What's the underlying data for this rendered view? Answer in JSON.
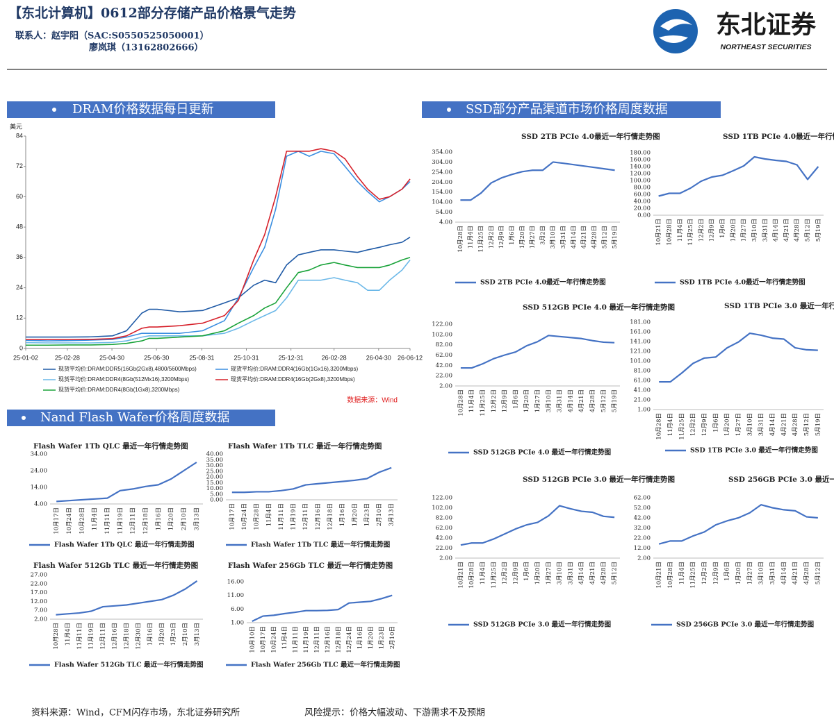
{
  "header": {
    "title": "【东北计算机】0612部分存储产品价格景气走势",
    "contacts": [
      "联系人：赵宇阳（SAC:S0550525050001）",
      "廖岚琪（13162802666）"
    ],
    "logo": {
      "name": "东北证券",
      "english": "NORTHEAST SECURITIES"
    }
  },
  "sections": {
    "dram": "DRAM价格数据每日更新",
    "nand": "Nand Flash Wafer价格周度数据",
    "ssd": "SSD部分产品渠道市场价格周度数据"
  },
  "chart_data": [
    {
      "type": "line",
      "y_label": "美元",
      "source": "数据来源：Wind",
      "legend": "bottom",
      "grid": false,
      "x": [
        "25-01-02",
        "25-02-01",
        "25-03-01",
        "25-04-01",
        "25-05-01",
        "25-05-20",
        "25-06-10",
        "25-06-20",
        "25-07-01",
        "25-08-01",
        "25-09-01",
        "25-10-01",
        "25-10-20",
        "25-11-10",
        "25-11-25",
        "25-12-10",
        "25-12-25",
        "26-01-10",
        "26-01-25",
        "26-02-10",
        "26-02-28",
        "26-03-15",
        "26-04-01",
        "26-04-15",
        "26-05-01",
        "26-05-15",
        "26-06-01",
        "26-06-12"
      ],
      "xlim": [
        "25-01-02",
        "26-06-12"
      ],
      "xticks": [
        "25-01-02",
        "25-02-28",
        "25-04-30",
        "25-06-30",
        "25-08-31",
        "25-10-31",
        "25-12-31",
        "26-02-28",
        "26-04-30",
        "26-06-12"
      ],
      "ylim": [
        0,
        84
      ],
      "yticks": [
        0,
        12,
        24,
        36,
        48,
        60,
        72,
        84
      ],
      "series": [
        {
          "name": "现货平均价:DRAM:DDR5(16Gb(2Gx8),4800/5600Mbps)",
          "color": "#1f5aa6",
          "values": [
            4.5,
            4.5,
            4.5,
            4.6,
            5,
            7,
            14,
            15.5,
            15.5,
            14.5,
            15,
            18,
            20,
            25,
            27,
            26,
            33,
            37,
            38,
            39,
            39,
            38.5,
            38,
            39,
            40,
            41,
            42,
            44
          ]
        },
        {
          "name": "现货平均价:DRAM:DDR4(16Gb(1Gx16),3200Mbps)",
          "color": "#3a8ee0",
          "values": [
            3.2,
            3,
            3.1,
            3.3,
            3.6,
            4.5,
            6,
            6,
            6,
            6,
            7,
            11,
            20,
            32,
            40,
            55,
            76,
            78,
            76,
            78,
            77,
            72,
            66,
            62,
            58,
            60,
            63,
            66
          ]
        },
        {
          "name": "现货平均价:DRAM:DDR4(8Gb(512Mx16),3200Mbps)",
          "color": "#6bb8e8",
          "values": [
            2.3,
            2.2,
            2.2,
            2.2,
            2.4,
            3,
            4.5,
            5,
            5,
            5,
            5,
            6,
            8,
            11,
            13,
            15,
            20,
            27,
            27,
            27,
            28,
            27,
            26,
            23,
            23,
            27,
            31,
            35
          ]
        },
        {
          "name": "现货平均价:DRAM:DDR4(16Gb(2Gx8),3200Mbps)",
          "color": "#d6202a",
          "values": [
            3.5,
            3.5,
            3.5,
            3.6,
            3.9,
            5,
            8,
            8.5,
            8.5,
            9,
            10,
            13,
            19,
            35,
            45,
            60,
            78,
            78,
            78,
            79,
            78,
            75,
            68,
            63,
            59,
            60,
            63,
            67
          ]
        },
        {
          "name": "现货平均价:DRAM:DDR4(8Gb(1Gx8),3200Mbps)",
          "color": "#1aa33a",
          "values": [
            1.3,
            1.3,
            1.4,
            1.4,
            1.6,
            2,
            3,
            4,
            4,
            4.5,
            5,
            7,
            10,
            13,
            16,
            18,
            24,
            30,
            31,
            33,
            34,
            33,
            32,
            32,
            32,
            33,
            35,
            36
          ]
        }
      ]
    },
    {
      "type": "line",
      "title": "Flash Wafer 1Tb QLC 最近一年行情走势图",
      "categories": [
        "10月17日",
        "10月24日",
        "10月28日",
        "11月4日",
        "11月11日",
        "11月19日",
        "12月11日",
        "12月18日",
        "1月16日",
        "1月20日",
        "2月10日",
        "3月13日"
      ],
      "ylim": [
        4,
        34
      ],
      "yticks": [
        {
          "value": 4,
          "label": "4.00"
        },
        {
          "value": 14,
          "label": "14.00"
        },
        {
          "value": 24,
          "label": "24.00"
        },
        {
          "value": 34,
          "label": "34.00"
        }
      ],
      "series": [
        {
          "name": "Flash Wafer 1Tb QLC 最近一年行情走势图",
          "color": "#4472c4",
          "values": [
            5.5,
            6,
            6.5,
            7,
            7.5,
            12,
            13,
            14.5,
            15.5,
            19,
            24,
            29
          ]
        }
      ]
    },
    {
      "type": "line",
      "title": "Flash Wafer 1Tb TLC 最近一年行情走势图",
      "categories": [
        "10月17日",
        "10月24日",
        "10月28日",
        "11月4日",
        "11月11日",
        "11月19日",
        "12月11日",
        "12月16日",
        "12月18日",
        "1月16日",
        "1月20日",
        "1月23日",
        "2月10日",
        "3月13日"
      ],
      "ylim": [
        0,
        40
      ],
      "yticks": [
        {
          "value": 0,
          "label": "0.00"
        },
        {
          "value": 5,
          "label": "5.00"
        },
        {
          "value": 10,
          "label": "10.00"
        },
        {
          "value": 15,
          "label": "15.00"
        },
        {
          "value": 20,
          "label": "20.00"
        },
        {
          "value": 25,
          "label": "25.00"
        },
        {
          "value": 30,
          "label": "30.00"
        },
        {
          "value": 35,
          "label": "35.00"
        },
        {
          "value": 40,
          "label": "40.00"
        }
      ],
      "series": [
        {
          "name": "Flash Wafer 1Tb TLC 最近一年行情走势图",
          "color": "#4472c4",
          "values": [
            6.5,
            6.5,
            7,
            7,
            8,
            9.5,
            13,
            14,
            15,
            16,
            17,
            18.5,
            24,
            28
          ]
        }
      ]
    },
    {
      "type": "line",
      "title": "Flash Wafer 512Gb TLC 最近一年行情走势图",
      "categories": [
        "10月28日",
        "11月4日",
        "11月11日",
        "11月19日",
        "12月11日",
        "12月16日",
        "12月18日",
        "12月30日",
        "1月16日",
        "1月20日",
        "1月23日",
        "2月10日",
        "3月13日"
      ],
      "ylim": [
        2,
        27
      ],
      "yticks": [
        {
          "value": 2,
          "label": "2.00"
        },
        {
          "value": 7,
          "label": "7.00"
        },
        {
          "value": 12,
          "label": "12.00"
        },
        {
          "value": 17,
          "label": "17.00"
        },
        {
          "value": 22,
          "label": "22.00"
        },
        {
          "value": 27,
          "label": "27.00"
        }
      ],
      "series": [
        {
          "name": "Flash Wafer 512Gb TLC 最近一年行情走势图",
          "color": "#4472c4",
          "values": [
            4.5,
            5,
            5.5,
            6.5,
            9,
            9.5,
            10,
            11,
            12,
            13,
            15.5,
            19,
            23.5
          ]
        }
      ]
    },
    {
      "type": "line",
      "title": "Flash Wafer 256Gb TLC 最近一年行情走势图",
      "categories": [
        "10月10日",
        "10月17日",
        "10月24日",
        "11月4日",
        "11月11日",
        "11月19日",
        "12月11日",
        "12月16日",
        "12月18日",
        "12月24日",
        "1月16日",
        "1月20日",
        "1月23日",
        "2月10日"
      ],
      "ylim": [
        1,
        16
      ],
      "yticks": [
        {
          "value": 1,
          "label": "1.00"
        },
        {
          "value": 6,
          "label": "6.00"
        },
        {
          "value": 11,
          "label": "11.00"
        },
        {
          "value": 16,
          "label": "16.00"
        }
      ],
      "series": [
        {
          "name": "Flash Wafer 256Gb TLC 最近一年行情走势图",
          "color": "#4472c4",
          "values": [
            1.5,
            3.4,
            3.7,
            4.3,
            4.8,
            5.4,
            5.4,
            5.5,
            5.8,
            8.2,
            8.5,
            8.8,
            9.8,
            11
          ]
        }
      ]
    },
    {
      "type": "line",
      "title": "SSD 2TB PCIe 4.0最近一年行情走势图",
      "categories": [
        "10月28日",
        "11月4日",
        "11月25日",
        "12月2日",
        "12月9日",
        "1月6日",
        "1月20日",
        "1月27日",
        "3月2日",
        "3月10日",
        "3月31日",
        "4月14日",
        "4月21日",
        "4月28日",
        "5月12日",
        "5月19日"
      ],
      "ylim": [
        4,
        354
      ],
      "yticks": [
        {
          "value": 4,
          "label": "4.00"
        },
        {
          "value": 54,
          "label": "54.00"
        },
        {
          "value": 104,
          "label": "104.00"
        },
        {
          "value": 154,
          "label": "154.00"
        },
        {
          "value": 204,
          "label": "204.00"
        },
        {
          "value": 254,
          "label": "254.00"
        },
        {
          "value": 304,
          "label": "304.00"
        },
        {
          "value": 354,
          "label": "354.00"
        }
      ],
      "series": [
        {
          "name": "SSD 2TB PCIe 4.0最近一年行情走势图",
          "color": "#4472c4",
          "values": [
            114,
            114,
            149,
            200,
            225,
            242,
            256,
            263,
            263,
            304,
            298,
            291,
            284,
            277,
            270,
            263
          ]
        }
      ]
    },
    {
      "type": "line",
      "title": "SSD 1TB PCIe 4.0最近一年行情走势图",
      "categories": [
        "10月21日",
        "10月28日",
        "11月4日",
        "11月25日",
        "12月2日",
        "12月9日",
        "1月6日",
        "1月20日",
        "1月27日",
        "3月10日",
        "3月31日",
        "4月14日",
        "4月21日",
        "4月28日",
        "5月12日",
        "5月19日"
      ],
      "ylim": [
        0,
        180
      ],
      "yticks": [
        {
          "value": 0,
          "label": "0.00"
        },
        {
          "value": 20,
          "label": "20.00"
        },
        {
          "value": 40,
          "label": "40.00"
        },
        {
          "value": 60,
          "label": "60.00"
        },
        {
          "value": 80,
          "label": "80.00"
        },
        {
          "value": 100,
          "label": "100.00"
        },
        {
          "value": 120,
          "label": "120.00"
        },
        {
          "value": 140,
          "label": "140.00"
        },
        {
          "value": 160,
          "label": "160.00"
        },
        {
          "value": 180,
          "label": "180.00"
        }
      ],
      "series": [
        {
          "name": "SSD 1TB PCIe 4.0最近一年行情走势图",
          "color": "#4472c4",
          "values": [
            55,
            63,
            63,
            78,
            98,
            110,
            115,
            128,
            142,
            168,
            162,
            158,
            155,
            145,
            103,
            140
          ]
        }
      ]
    },
    {
      "type": "line",
      "title": "SSD 512GB PCIe 4.0 最近一年行情走势图",
      "categories": [
        "10月28日",
        "11月4日",
        "11月25日",
        "12月2日",
        "12月9日",
        "1月6日",
        "1月20日",
        "1月27日",
        "3月10日",
        "3月31日",
        "4月14日",
        "4月21日",
        "4月28日",
        "5月12日",
        "5月19日"
      ],
      "ylim": [
        2,
        122
      ],
      "yticks": [
        {
          "value": 2,
          "label": "2.00"
        },
        {
          "value": 22,
          "label": "22.00"
        },
        {
          "value": 42,
          "label": "42.00"
        },
        {
          "value": 62,
          "label": "62.00"
        },
        {
          "value": 82,
          "label": "82.00"
        },
        {
          "value": 102,
          "label": "102.00"
        },
        {
          "value": 122,
          "label": "122.00"
        }
      ],
      "series": [
        {
          "name": "SSD 512GB PCIe 4.0 最近一年行情走势图",
          "color": "#4472c4",
          "values": [
            37,
            37,
            45,
            55,
            62,
            68,
            80,
            88,
            100,
            98,
            96,
            94,
            90,
            87,
            86
          ]
        }
      ]
    },
    {
      "type": "line",
      "title": "SSD 1TB PCIe 3.0 最近一年行情走势图",
      "categories": [
        "10月28日",
        "11月4日",
        "11月25日",
        "12月2日",
        "12月9日",
        "1月6日",
        "1月20日",
        "1月27日",
        "3月10日",
        "3月31日",
        "4月14日",
        "4月21日",
        "4月28日",
        "5月12日",
        "5月19日"
      ],
      "ylim": [
        1,
        181
      ],
      "yticks": [
        {
          "value": 1,
          "label": "1.00"
        },
        {
          "value": 21,
          "label": "21.00"
        },
        {
          "value": 41,
          "label": "41.00"
        },
        {
          "value": 61,
          "label": "61.00"
        },
        {
          "value": 81,
          "label": "81.00"
        },
        {
          "value": 101,
          "label": "101.00"
        },
        {
          "value": 121,
          "label": "121.00"
        },
        {
          "value": 141,
          "label": "141.00"
        },
        {
          "value": 161,
          "label": "161.00"
        },
        {
          "value": 181,
          "label": "181.00"
        }
      ],
      "series": [
        {
          "name": "SSD 1TB PCIe 3.0 最近一年行情走势图",
          "color": "#4472c4",
          "values": [
            58,
            58,
            76,
            96,
            107,
            109,
            128,
            140,
            158,
            154,
            148,
            146,
            128,
            124,
            123
          ]
        }
      ]
    },
    {
      "type": "line",
      "title": "SSD 512GB PCIe 3.0 最近一年行情走势图",
      "categories": [
        "10月21日",
        "10月28日",
        "11月4日",
        "11月25日",
        "12月2日",
        "12月9日",
        "1月6日",
        "1月20日",
        "1月27日",
        "3月10日",
        "3月31日",
        "4月14日",
        "4月21日",
        "4月28日",
        "5月12日"
      ],
      "ylim": [
        2,
        122
      ],
      "yticks": [
        {
          "value": 2,
          "label": "2.00"
        },
        {
          "value": 22,
          "label": "22.00"
        },
        {
          "value": 42,
          "label": "42.00"
        },
        {
          "value": 62,
          "label": "62.00"
        },
        {
          "value": 82,
          "label": "82.00"
        },
        {
          "value": 102,
          "label": "102.00"
        },
        {
          "value": 122,
          "label": "122.00"
        }
      ],
      "series": [
        {
          "name": "SSD 512GB PCIe 3.0 最近一年行情走势图",
          "color": "#4472c4",
          "values": [
            28,
            32,
            32,
            40,
            50,
            60,
            68,
            73,
            86,
            106,
            100,
            95,
            93,
            85,
            83
          ]
        }
      ]
    },
    {
      "type": "line",
      "title": "SSD 256GB PCIe 3.0 最近一年行情走势图",
      "categories": [
        "10月21日",
        "10月28日",
        "11月4日",
        "11月25日",
        "12月2日",
        "12月9日",
        "1月6日",
        "1月20日",
        "1月27日",
        "3月10日",
        "3月31日",
        "4月14日",
        "4月21日",
        "4月28日",
        "5月12日"
      ],
      "ylim": [
        2,
        62
      ],
      "yticks": [
        {
          "value": 2,
          "label": "2.00"
        },
        {
          "value": 12,
          "label": "12.00"
        },
        {
          "value": 22,
          "label": "22.00"
        },
        {
          "value": 32,
          "label": "32.00"
        },
        {
          "value": 42,
          "label": "42.00"
        },
        {
          "value": 52,
          "label": "52.00"
        },
        {
          "value": 62,
          "label": "62.00"
        }
      ],
      "series": [
        {
          "name": "SSD 256GB PCIe 3.0 最近一年行情走势图",
          "color": "#4472c4",
          "values": [
            16,
            19,
            19,
            24,
            28,
            35,
            39,
            42,
            47,
            55,
            52,
            50,
            49,
            43,
            42
          ]
        }
      ]
    }
  ],
  "footer": {
    "source": "资料来源：Wind，CFM闪存市场，东北证券研究所",
    "risk": "风险提示：价格大幅波动、下游需求不及预期"
  }
}
